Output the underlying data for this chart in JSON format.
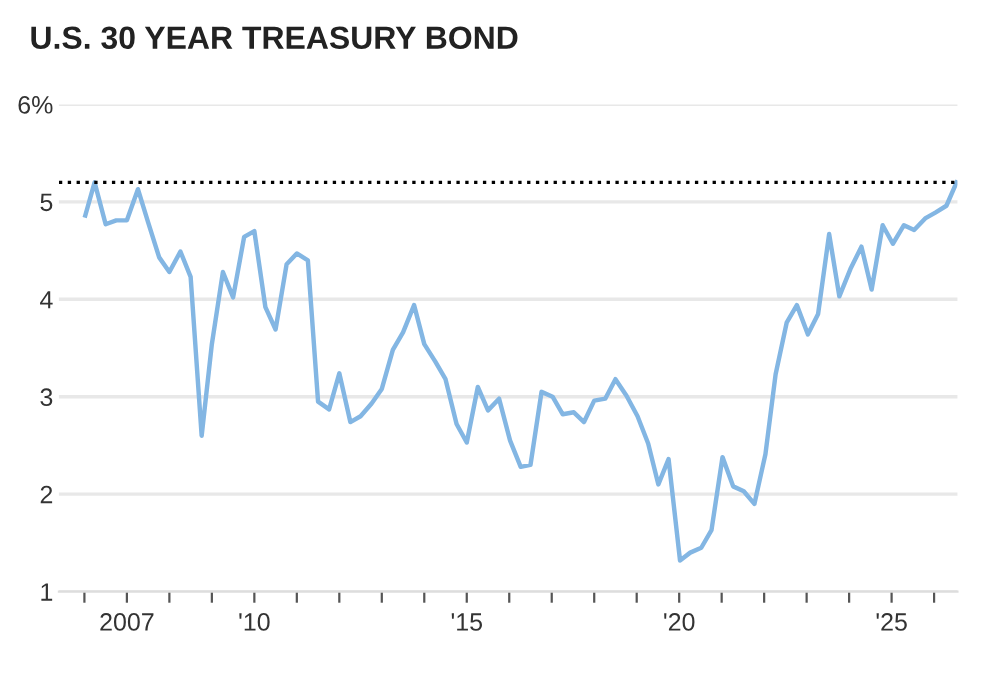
{
  "chart_data": {
    "type": "line",
    "title": "U.S. 30 YEAR TREASURY BOND",
    "x": [
      2006.02,
      2006.24,
      2006.5,
      2006.75,
      2007.0,
      2007.26,
      2007.5,
      2007.76,
      2008.0,
      2008.26,
      2008.5,
      2008.76,
      2009.0,
      2009.26,
      2009.5,
      2009.76,
      2010.0,
      2010.26,
      2010.5,
      2010.76,
      2011.0,
      2011.26,
      2011.5,
      2011.76,
      2012.0,
      2012.26,
      2012.5,
      2012.76,
      2013.0,
      2013.26,
      2013.5,
      2013.76,
      2014.0,
      2014.26,
      2014.5,
      2014.76,
      2015.0,
      2015.26,
      2015.5,
      2015.76,
      2016.02,
      2016.27,
      2016.5,
      2016.76,
      2017.02,
      2017.26,
      2017.52,
      2017.76,
      2018.0,
      2018.26,
      2018.5,
      2018.76,
      2019.02,
      2019.27,
      2019.51,
      2019.75,
      2020.02,
      2020.26,
      2020.52,
      2020.76,
      2021.02,
      2021.27,
      2021.52,
      2021.77,
      2022.03,
      2022.27,
      2022.53,
      2022.77,
      2023.03,
      2023.27,
      2023.53,
      2023.77,
      2024.03,
      2024.29,
      2024.53,
      2024.79,
      2025.03,
      2025.29,
      2025.53,
      2025.79,
      2026.03,
      2026.29,
      2026.53
    ],
    "series": [
      {
        "color": "#83b6e3",
        "values": [
          4.86,
          5.2,
          4.77,
          4.81,
          4.81,
          5.13,
          4.79,
          4.43,
          4.28,
          4.49,
          4.23,
          2.6,
          3.54,
          4.28,
          4.02,
          4.64,
          4.7,
          3.92,
          3.69,
          4.36,
          4.47,
          4.4,
          2.95,
          2.87,
          3.24,
          2.74,
          2.8,
          2.93,
          3.08,
          3.48,
          3.66,
          3.94,
          3.54,
          3.36,
          3.18,
          2.72,
          2.53,
          3.1,
          2.86,
          2.98,
          2.55,
          2.28,
          2.3,
          3.05,
          3.0,
          2.82,
          2.84,
          2.74,
          2.96,
          2.98,
          3.18,
          3.01,
          2.8,
          2.52,
          2.1,
          2.36,
          1.32,
          1.4,
          1.45,
          1.63,
          2.38,
          2.08,
          2.03,
          1.9,
          2.41,
          3.23,
          3.76,
          3.94,
          3.64,
          3.85,
          4.67,
          4.03,
          4.31,
          4.54,
          4.1,
          4.76,
          4.57,
          4.76,
          4.71,
          4.83,
          4.89,
          4.96,
          5.2
        ]
      }
    ],
    "xlim": [
      2005.4,
      2026.55
    ],
    "xticks": [
      {
        "value": 2006,
        "label": null
      },
      {
        "value": 2007,
        "label": "2007"
      },
      {
        "value": 2008,
        "label": null
      },
      {
        "value": 2009,
        "label": null
      },
      {
        "value": 2010,
        "label": "'10"
      },
      {
        "value": 2011,
        "label": null
      },
      {
        "value": 2012,
        "label": null
      },
      {
        "value": 2013,
        "label": null
      },
      {
        "value": 2014,
        "label": null
      },
      {
        "value": 2015,
        "label": "'15"
      },
      {
        "value": 2016,
        "label": null
      },
      {
        "value": 2017,
        "label": null
      },
      {
        "value": 2018,
        "label": null
      },
      {
        "value": 2019,
        "label": null
      },
      {
        "value": 2020,
        "label": "'20"
      },
      {
        "value": 2021,
        "label": null
      },
      {
        "value": 2022,
        "label": null
      },
      {
        "value": 2023,
        "label": null
      },
      {
        "value": 2024,
        "label": null
      },
      {
        "value": 2025,
        "label": "'25"
      },
      {
        "value": 2026,
        "label": null
      }
    ],
    "ylim": [
      1,
      6
    ],
    "yticks": [
      1,
      2,
      3,
      4,
      5,
      {
        "value": 6,
        "label": "6%"
      }
    ],
    "grid": "y",
    "ref_lines": [
      {
        "axis": "y",
        "value": 5.2,
        "color": "#000000",
        "line_style": "dotted"
      }
    ]
  }
}
